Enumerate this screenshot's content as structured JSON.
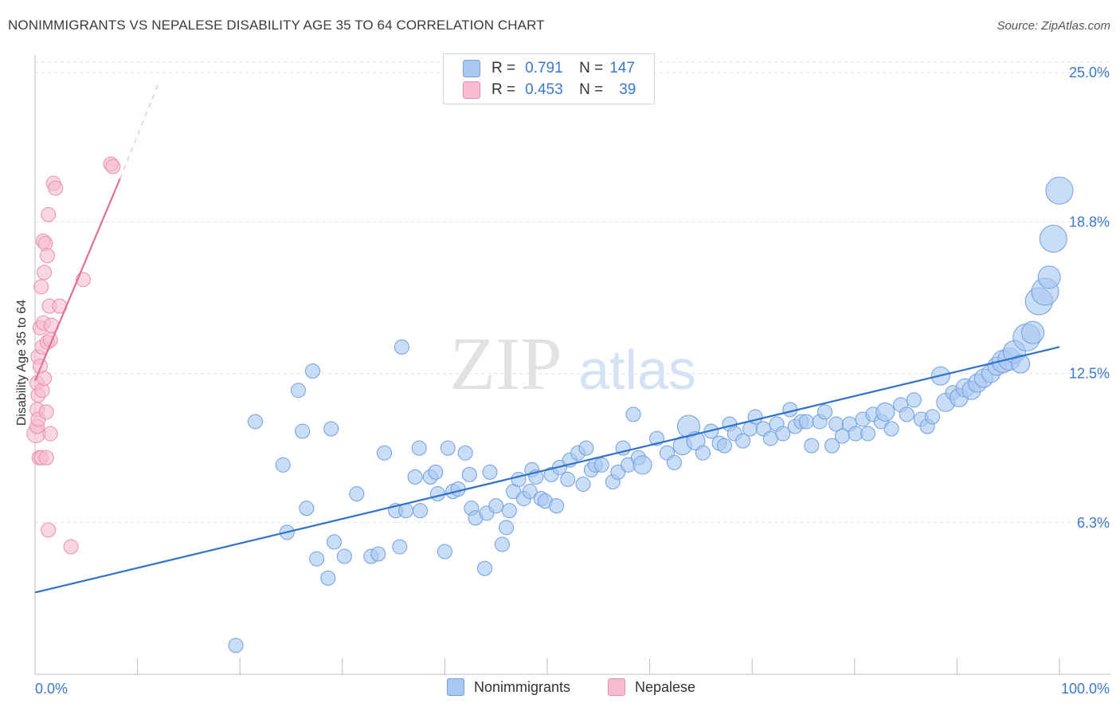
{
  "header": {
    "title": "NONIMMIGRANTS VS NEPALESE DISABILITY AGE 35 TO 64 CORRELATION CHART",
    "source": "Source: ZipAtlas.com"
  },
  "watermark": {
    "zip": "ZIP",
    "atlas": "atlas"
  },
  "legend_top": {
    "rows": [
      {
        "r_label": "R =",
        "r_value": "0.791",
        "n_label": "N =",
        "n_value": "147",
        "color": "#a9c8f0"
      },
      {
        "r_label": "R =",
        "r_value": "0.453",
        "n_label": "N =",
        "n_value": "39",
        "color": "#f7bcd0"
      }
    ]
  },
  "legend_bottom": {
    "items": [
      {
        "label": "Nonimmigrants",
        "color": "#a9c8f0"
      },
      {
        "label": "Nepalese",
        "color": "#f7bcd0"
      }
    ]
  },
  "colors": {
    "blue_fill": "#a9c8f0",
    "blue_stroke": "#6f9fe0",
    "blue_line": "#2f72cc",
    "pink_fill": "#f7bcd0",
    "pink_stroke": "#e88fae",
    "pink_line": "#e0709a",
    "tick_label": "#3b78cf",
    "grid": "#e3e3e3"
  },
  "chart_data": {
    "type": "scatter",
    "title": "NONIMMIGRANTS VS NEPALESE DISABILITY AGE 35 TO 64 CORRELATION CHART",
    "xlabel": "",
    "ylabel": "Disability Age 35 to 64",
    "xlim": [
      0,
      100
    ],
    "ylim": [
      0,
      25.7
    ],
    "x_tick_labels": [
      "0.0%",
      "100.0%"
    ],
    "y_ticks": [
      6.3,
      12.5,
      18.8,
      25.0
    ],
    "y_tick_labels": [
      "6.3%",
      "12.5%",
      "18.8%",
      "25.0%"
    ],
    "grid": true,
    "legend_position": "top-center",
    "series": [
      {
        "name": "Nonimmigrants",
        "r": 0.791,
        "n": 147,
        "trendline": {
          "x": [
            0,
            100
          ],
          "y": [
            3.4,
            13.6
          ]
        },
        "points": [
          [
            19.6,
            1.2,
            3
          ],
          [
            21.5,
            10.5,
            3
          ],
          [
            24.2,
            8.7,
            3
          ],
          [
            24.6,
            5.9,
            3
          ],
          [
            25.7,
            11.8,
            3
          ],
          [
            26.1,
            10.1,
            3
          ],
          [
            26.5,
            6.9,
            3
          ],
          [
            27.1,
            12.6,
            3
          ],
          [
            27.5,
            4.8,
            3
          ],
          [
            28.6,
            4.0,
            3
          ],
          [
            28.9,
            10.2,
            3
          ],
          [
            29.2,
            5.5,
            3
          ],
          [
            30.2,
            4.9,
            3
          ],
          [
            31.4,
            7.5,
            3
          ],
          [
            32.8,
            4.9,
            3
          ],
          [
            33.5,
            5.0,
            3
          ],
          [
            34.1,
            9.2,
            3
          ],
          [
            35.2,
            6.8,
            3
          ],
          [
            35.6,
            5.3,
            3
          ],
          [
            35.8,
            13.6,
            3
          ],
          [
            36.2,
            6.8,
            3
          ],
          [
            37.1,
            8.2,
            3
          ],
          [
            37.5,
            9.4,
            3
          ],
          [
            37.6,
            6.8,
            3
          ],
          [
            38.6,
            8.2,
            3
          ],
          [
            39.1,
            8.4,
            3
          ],
          [
            39.3,
            7.5,
            3
          ],
          [
            40.0,
            5.1,
            3
          ],
          [
            40.3,
            9.4,
            3
          ],
          [
            40.8,
            7.6,
            3
          ],
          [
            41.3,
            7.7,
            3
          ],
          [
            42.0,
            9.2,
            3
          ],
          [
            42.4,
            8.3,
            3
          ],
          [
            42.6,
            6.9,
            3
          ],
          [
            43.0,
            6.5,
            3
          ],
          [
            43.9,
            4.4,
            3
          ],
          [
            44.1,
            6.7,
            3
          ],
          [
            44.4,
            8.4,
            3
          ],
          [
            45.0,
            7.0,
            3
          ],
          [
            45.6,
            5.4,
            3
          ],
          [
            46.0,
            6.1,
            3
          ],
          [
            46.3,
            6.8,
            3
          ],
          [
            46.7,
            7.6,
            3
          ],
          [
            47.2,
            8.1,
            3
          ],
          [
            47.7,
            7.3,
            3
          ],
          [
            48.3,
            7.6,
            3
          ],
          [
            48.5,
            8.5,
            3
          ],
          [
            48.9,
            8.2,
            3
          ],
          [
            49.4,
            7.3,
            3
          ],
          [
            49.8,
            7.2,
            3
          ],
          [
            50.4,
            8.3,
            3
          ],
          [
            50.9,
            7.0,
            3
          ],
          [
            51.2,
            8.6,
            3
          ],
          [
            52.0,
            8.1,
            3
          ],
          [
            52.2,
            8.9,
            3
          ],
          [
            53.0,
            9.2,
            3
          ],
          [
            53.5,
            7.9,
            3
          ],
          [
            53.8,
            9.4,
            3
          ],
          [
            54.3,
            8.5,
            3
          ],
          [
            54.7,
            8.7,
            3
          ],
          [
            55.3,
            8.7,
            3
          ],
          [
            56.4,
            8.0,
            3
          ],
          [
            56.9,
            8.4,
            3
          ],
          [
            57.4,
            9.4,
            3
          ],
          [
            57.9,
            8.7,
            3
          ],
          [
            58.4,
            10.8,
            3
          ],
          [
            58.9,
            9.0,
            3
          ],
          [
            59.3,
            8.7,
            4
          ],
          [
            60.7,
            9.8,
            3
          ],
          [
            61.7,
            9.2,
            3
          ],
          [
            62.4,
            8.8,
            3
          ],
          [
            63.2,
            9.5,
            4
          ],
          [
            63.8,
            10.3,
            5
          ],
          [
            64.5,
            9.7,
            4
          ],
          [
            65.2,
            9.2,
            3
          ],
          [
            66.0,
            10.1,
            3
          ],
          [
            66.8,
            9.6,
            3
          ],
          [
            67.3,
            9.5,
            3
          ],
          [
            67.8,
            10.4,
            3
          ],
          [
            68.3,
            10.0,
            3
          ],
          [
            69.1,
            9.7,
            3
          ],
          [
            69.8,
            10.2,
            3
          ],
          [
            70.3,
            10.7,
            3
          ],
          [
            71.1,
            10.2,
            3
          ],
          [
            71.8,
            9.8,
            3
          ],
          [
            72.4,
            10.4,
            3
          ],
          [
            73.0,
            10.0,
            3
          ],
          [
            73.7,
            11.0,
            3
          ],
          [
            74.2,
            10.3,
            3
          ],
          [
            74.8,
            10.5,
            3
          ],
          [
            75.3,
            10.5,
            3
          ],
          [
            75.8,
            9.5,
            3
          ],
          [
            76.6,
            10.5,
            3
          ],
          [
            77.1,
            10.9,
            3
          ],
          [
            77.8,
            9.5,
            3
          ],
          [
            78.2,
            10.4,
            3
          ],
          [
            78.8,
            9.9,
            3
          ],
          [
            79.5,
            10.4,
            3
          ],
          [
            80.1,
            10.0,
            3
          ],
          [
            80.8,
            10.6,
            3
          ],
          [
            81.3,
            10.0,
            3
          ],
          [
            81.8,
            10.8,
            3
          ],
          [
            82.6,
            10.5,
            3
          ],
          [
            83.0,
            10.9,
            4
          ],
          [
            83.6,
            10.2,
            3
          ],
          [
            84.5,
            11.2,
            3
          ],
          [
            85.1,
            10.8,
            3
          ],
          [
            85.8,
            11.4,
            3
          ],
          [
            86.5,
            10.6,
            3
          ],
          [
            87.1,
            10.3,
            3
          ],
          [
            87.6,
            10.7,
            3
          ],
          [
            88.4,
            12.4,
            4
          ],
          [
            88.9,
            11.3,
            4
          ],
          [
            89.6,
            11.7,
            3
          ],
          [
            90.2,
            11.5,
            4
          ],
          [
            90.8,
            11.9,
            4
          ],
          [
            91.4,
            11.8,
            4
          ],
          [
            92.0,
            12.1,
            4
          ],
          [
            92.6,
            12.3,
            4
          ],
          [
            93.3,
            12.5,
            4
          ],
          [
            93.9,
            12.8,
            4
          ],
          [
            94.5,
            13.0,
            5
          ],
          [
            95.1,
            13.1,
            5
          ],
          [
            95.6,
            13.4,
            5
          ],
          [
            96.2,
            12.9,
            4
          ],
          [
            96.8,
            14.0,
            6
          ],
          [
            97.4,
            14.2,
            5
          ],
          [
            98.0,
            15.5,
            6
          ],
          [
            98.6,
            15.9,
            6
          ],
          [
            99.0,
            16.5,
            5
          ],
          [
            99.4,
            18.1,
            6
          ],
          [
            100.0,
            20.1,
            6
          ]
        ]
      },
      {
        "name": "Nepalese",
        "r": 0.453,
        "n": 39,
        "trendline": {
          "x": [
            0,
            8.3
          ],
          "y": [
            12.2,
            20.6
          ],
          "dashed_extension": {
            "x": [
              8.3,
              12.0
            ],
            "y": [
              20.6,
              24.5
            ]
          }
        },
        "points": [
          [
            0.1,
            10.0,
            4
          ],
          [
            0.2,
            10.3,
            3
          ],
          [
            0.2,
            11.0,
            3
          ],
          [
            0.2,
            12.1,
            3
          ],
          [
            0.3,
            10.6,
            3
          ],
          [
            0.3,
            11.6,
            3
          ],
          [
            0.3,
            13.2,
            3
          ],
          [
            0.4,
            9.0,
            3
          ],
          [
            0.5,
            14.4,
            3
          ],
          [
            0.5,
            12.8,
            3
          ],
          [
            0.6,
            16.1,
            3
          ],
          [
            0.6,
            9.0,
            3
          ],
          [
            0.7,
            13.6,
            3
          ],
          [
            0.7,
            11.8,
            3
          ],
          [
            0.8,
            14.6,
            3
          ],
          [
            0.8,
            18.0,
            3
          ],
          [
            0.9,
            16.7,
            3
          ],
          [
            0.9,
            12.3,
            3
          ],
          [
            1.0,
            17.9,
            3
          ],
          [
            1.1,
            10.9,
            3
          ],
          [
            1.1,
            9.0,
            3
          ],
          [
            1.2,
            13.8,
            3
          ],
          [
            1.2,
            17.4,
            3
          ],
          [
            1.3,
            19.1,
            3
          ],
          [
            1.3,
            6.0,
            3
          ],
          [
            1.4,
            15.3,
            3
          ],
          [
            1.5,
            10.0,
            3
          ],
          [
            1.5,
            13.9,
            3
          ],
          [
            1.6,
            14.5,
            3
          ],
          [
            1.8,
            20.4,
            3
          ],
          [
            2.0,
            20.2,
            3
          ],
          [
            2.4,
            15.3,
            3
          ],
          [
            3.5,
            5.3,
            3
          ],
          [
            4.7,
            16.4,
            3
          ],
          [
            7.4,
            21.2,
            3
          ],
          [
            7.6,
            21.1,
            3
          ]
        ]
      }
    ]
  }
}
